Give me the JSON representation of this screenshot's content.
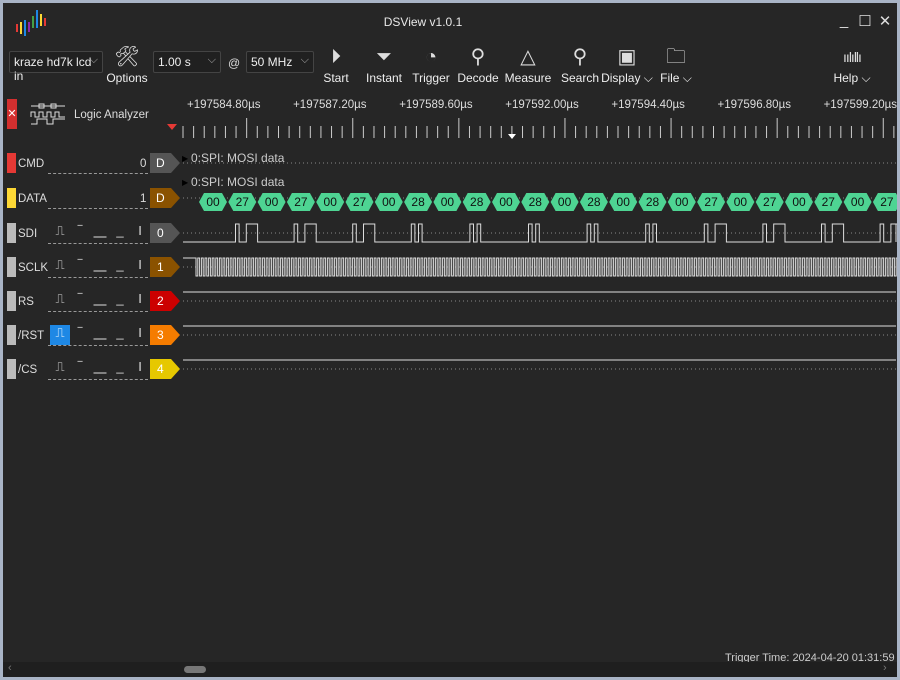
{
  "app": {
    "title": "DSView v1.0.1",
    "logo_colors": [
      "#e53935",
      "#fdd835",
      "#1e88e5",
      "#8e24aa",
      "#43a047",
      "#fb8c00"
    ]
  },
  "window_controls": {
    "minimize": "_",
    "maximize": "☐",
    "close": "✕"
  },
  "toolbar": {
    "device": "kraze hd7k lcd in",
    "options": "Options",
    "duration": "1.00 s",
    "at": "@",
    "samplerate": "50 MHz",
    "buttons": [
      {
        "label": "Start",
        "icon": "play-icon"
      },
      {
        "label": "Instant",
        "icon": "instant-icon"
      },
      {
        "label": "Trigger",
        "icon": "trigger-icon"
      },
      {
        "label": "Decode",
        "icon": "decode-icon"
      },
      {
        "label": "Measure",
        "icon": "measure-icon"
      },
      {
        "label": "Search",
        "icon": "search-icon"
      },
      {
        "label": "Display",
        "icon": "display-icon"
      },
      {
        "label": "File",
        "icon": "file-icon"
      }
    ],
    "help": "Help"
  },
  "panel": {
    "title": "Logic Analyzer"
  },
  "ruler": {
    "ticks": [
      "+197584.80µs",
      "+197587.20µs",
      "+197589.60µs",
      "+197592.00µs",
      "+197594.40µs",
      "+197596.80µs",
      "+197599.20µs"
    ]
  },
  "decoder_rows": [
    {
      "name": "CMD",
      "index": "0",
      "badge": "D",
      "color": "#e53935",
      "badge_color": "#555555",
      "annotation": "0:SPI: MOSI data"
    },
    {
      "name": "DATA",
      "index": "1",
      "badge": "D",
      "color": "#fdd835",
      "badge_color": "#8a5200",
      "annotation": "0:SPI: MOSI data"
    }
  ],
  "decoded_bytes": [
    "00",
    "27",
    "00",
    "27",
    "00",
    "27",
    "00",
    "28",
    "00",
    "28",
    "00",
    "28",
    "00",
    "28",
    "00",
    "28",
    "00",
    "27",
    "00",
    "27",
    "00",
    "27",
    "00",
    "27"
  ],
  "decode_color": "#4ed493",
  "channels": [
    {
      "name": "SDI",
      "num": "0",
      "color": "#555555"
    },
    {
      "name": "SCLK",
      "num": "1",
      "color": "#8a5200"
    },
    {
      "name": "RS",
      "num": "2",
      "color": "#cc0000"
    },
    {
      "name": "/RST",
      "num": "3",
      "color": "#f57c00",
      "trigger_selected": "rising"
    },
    {
      "name": "/CS",
      "num": "4",
      "color": "#e6c800"
    }
  ],
  "trigger_glyphs": [
    "⎍",
    "‾",
    "⎽",
    "_",
    "I"
  ],
  "status": {
    "trigger_time": "Trigger Time: 2024-04-20 01:31:59"
  }
}
